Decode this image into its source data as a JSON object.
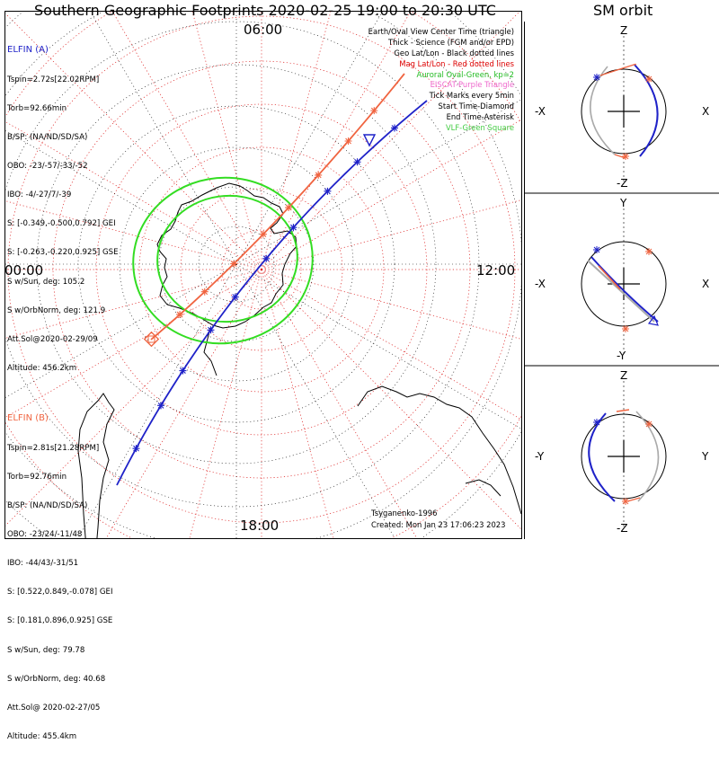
{
  "title": "Southern Geographic Footprints 2020-02-25 19:00 to 20:30 UTC",
  "sm_title": "SM orbit",
  "colors": {
    "elfin_a": "#1f22c8",
    "elfin_b": "#f06440",
    "grid_geo": "#000000",
    "grid_mag": "#dd2020",
    "auroral_oval": "#33dd22",
    "eiscat": "#ee66cc",
    "vlf": "#44cc44",
    "gray_orbit": "#aaaaaa"
  },
  "polar_plot": {
    "hemisphere": "south",
    "time_labels": {
      "top": "06:00",
      "right": "12:00",
      "bottom": "18:00",
      "left": "00:00"
    }
  },
  "legend": [
    {
      "text": "Earth/Oval View Center Time (triangle)",
      "color": "#000000"
    },
    {
      "text": "Thick - Science (FGM and/or EPD)",
      "color": "#000000"
    },
    {
      "text": "Geo Lat/Lon - Black dotted lines",
      "color": "#000000"
    },
    {
      "text": "Mag Lat/Lon - Red dotted lines",
      "color": "#dd0000"
    },
    {
      "text": "Auroral Oval-Green, kp=2",
      "color": "#22bb22"
    },
    {
      "text": "EISCAT-Purple Triangle",
      "color": "#ee66cc"
    },
    {
      "text": "Tick Marks every 5min",
      "color": "#000000"
    },
    {
      "text": "Start Time-Diamond",
      "color": "#000000"
    },
    {
      "text": "End Time-Asterisk",
      "color": "#000000"
    },
    {
      "text": "VLF-Green Square",
      "color": "#44cc44"
    }
  ],
  "elfin_a": {
    "header": "ELFIN (A)",
    "lines": [
      "Tspin=2.72s[22.02RPM]",
      "Torb=92.66min",
      "B/SP: (NA/ND/SD/SA)",
      "OBO: -23/-57/-33/-52",
      "IBO: -4/-27/7/-39",
      "S: [-0.349,-0.500,0.792] GEI",
      "S: [-0.263,-0.220,0.925] GSE",
      "S w/Sun, deg: 105.2",
      "S w/OrbNorm, deg: 121.9",
      "Att.Sol@2020-02-29/09",
      "Altitude: 456.2km"
    ]
  },
  "elfin_b": {
    "header": "ELFIN (B)",
    "lines": [
      "Tspin=2.81s[21.28RPM]",
      "Torb=92.76min",
      "B/SP: (NA/ND/SD/SA)",
      "OBO: -23/24/-11/48",
      "IBO: -44/43/-31/51",
      "S: [0.522,0.849,-0.078] GEI",
      "S: [0.181,0.896,0.925] GSE",
      "S w/Sun, deg: 79.78",
      "S w/OrbNorm, deg: 40.68",
      "Att.Sol@ 2020-02-27/05",
      "Altitude: 455.4km"
    ]
  },
  "credits": {
    "author": "Tsyganenko-1996",
    "created": "Created: Mon Jan 23 17:06:23 2023"
  },
  "sm_panels": [
    {
      "top": "Z",
      "bottom": "-Z",
      "left": "-X",
      "right": "X"
    },
    {
      "top": "Y",
      "bottom": "-Y",
      "left": "-X",
      "right": "X"
    },
    {
      "top": "Z",
      "bottom": "-Z",
      "left": "-Y",
      "right": "Y"
    }
  ],
  "chart_data": {
    "type": "scatter",
    "title": "Southern Geographic Footprints 2020-02-25 19:00 to 20:30 UTC",
    "projection": "south polar, local time around the edge",
    "local_time_labels": [
      "06:00",
      "12:00",
      "18:00",
      "00:00"
    ],
    "series": [
      {
        "name": "ELFIN (A)",
        "color": "#1f22c8",
        "tick_interval": "5min",
        "ticks": 10
      },
      {
        "name": "ELFIN (B)",
        "color": "#f06440",
        "tick_interval": "5min",
        "ticks": 8
      }
    ],
    "auroral_oval_kp": 2
  }
}
